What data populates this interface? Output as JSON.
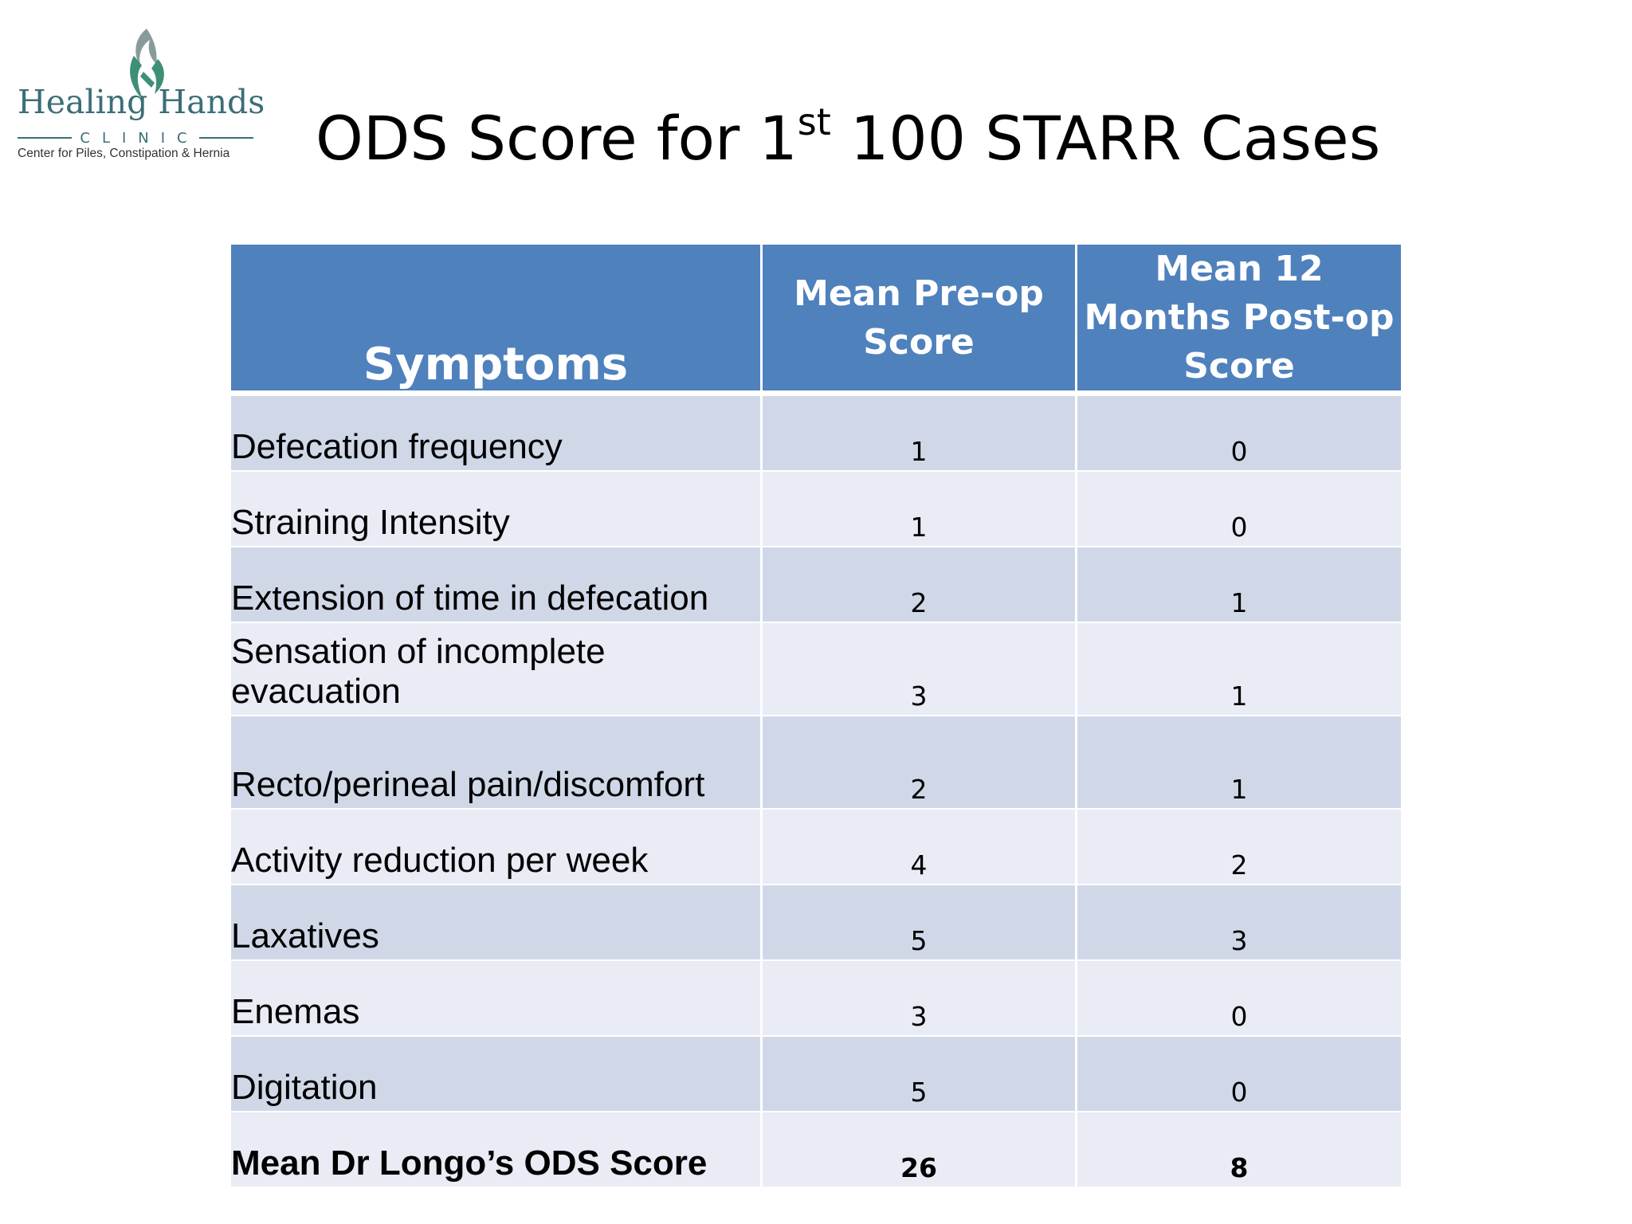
{
  "logo": {
    "name": "Healing Hands",
    "subtitle": "CLINIC",
    "tagline": "Center for Piles, Constipation & Hernia",
    "brand_color": "#3b6e77",
    "accent_color": "#4e9e8c"
  },
  "slide": {
    "title_before": "ODS Score for 1",
    "title_sup": "st",
    "title_after": " 100 STARR Cases"
  },
  "table": {
    "header_color": "#4f81bd",
    "row_color_odd": "#d0d8e8",
    "row_color_even": "#e9ebf5",
    "headers": {
      "symptoms": "Symptoms",
      "preop": "Mean Pre-op Score",
      "postop": "Mean 12 Months Post-op Score"
    },
    "rows": [
      {
        "symptom": "Defecation frequency",
        "preop": "1",
        "postop": "0"
      },
      {
        "symptom": "Straining Intensity",
        "preop": "1",
        "postop": "0"
      },
      {
        "symptom": "Extension of time in defecation",
        "preop": "2",
        "postop": "1"
      },
      {
        "symptom": "Sensation of incomplete evacuation",
        "preop": "3",
        "postop": "1"
      },
      {
        "symptom": "Recto/perineal pain/discomfort",
        "preop": "2",
        "postop": "1"
      },
      {
        "symptom": "Activity reduction per week",
        "preop": "4",
        "postop": "2"
      },
      {
        "symptom": "Laxatives",
        "preop": "5",
        "postop": "3"
      },
      {
        "symptom": "Enemas",
        "preop": "3",
        "postop": "0"
      },
      {
        "symptom": "Digitation",
        "preop": "5",
        "postop": "0"
      }
    ],
    "total": {
      "symptom": "Mean Dr Longo’s ODS Score",
      "preop": "26",
      "postop": "8"
    }
  }
}
